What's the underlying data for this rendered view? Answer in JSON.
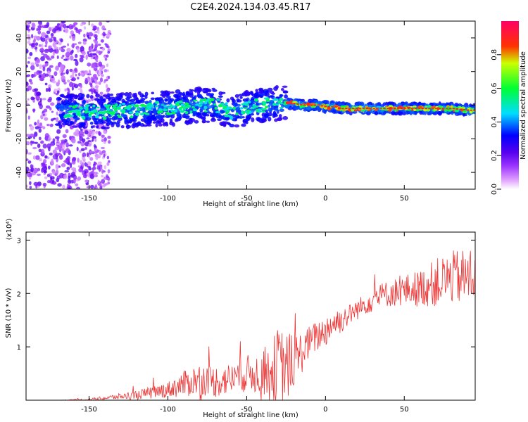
{
  "title": "C2E4.2024.134.03.45.R17",
  "chart_data": [
    {
      "type": "heatmap",
      "xlabel": "Height of straight line (km)",
      "ylabel": "Frequency (Hz)",
      "xlim": [
        -190,
        95
      ],
      "ylim": [
        -50,
        50
      ],
      "xticks": [
        -150,
        -100,
        -50,
        0,
        50
      ],
      "xtick_labels": [
        "-150",
        "-100",
        "-50",
        "0",
        "50"
      ],
      "yticks": [
        -40,
        -20,
        0,
        20,
        40
      ],
      "ytick_labels": [
        "-40",
        "-20",
        "0",
        "20",
        "40"
      ],
      "colorbar": {
        "label": "Normalized spectral amplitude",
        "range": [
          0,
          1
        ],
        "ticks": [
          0.0,
          0.2,
          0.4,
          0.6,
          0.8
        ],
        "tick_labels": [
          "0.0",
          "0.2",
          "0.4",
          "0.6",
          "0.8"
        ],
        "colormap": [
          "#ffffff",
          "#cc66ff",
          "#7700ee",
          "#0000ff",
          "#00ffff",
          "#00ff00",
          "#ffff00",
          "#ff0000",
          "#ff0066"
        ]
      },
      "ridge": {
        "description_free": true,
        "x": [
          -165,
          -150,
          -140,
          -130,
          -120,
          -110,
          -100,
          -90,
          -80,
          -70,
          -60,
          -50,
          -40,
          -30,
          -25,
          -20,
          -15,
          -10,
          -5,
          0,
          5,
          10,
          20,
          30,
          40,
          50,
          60,
          70,
          80,
          90,
          95
        ],
        "y": [
          -3,
          -4,
          -4,
          -3,
          -3,
          -2,
          -2,
          -1,
          0,
          0,
          -4,
          -2,
          0,
          1,
          1,
          1,
          0,
          0,
          0,
          -1,
          -1,
          -2,
          -2,
          -2,
          -2,
          -2,
          -2,
          -2,
          -2,
          -3,
          -3
        ]
      },
      "grid": false
    },
    {
      "type": "line",
      "xlabel": "Height of straight line (km)",
      "ylabel": "SNR (10 * v/v)",
      "scale_note": "(x10⁴)",
      "xlim": [
        -190,
        95
      ],
      "ylim": [
        0,
        3.15
      ],
      "xticks": [
        -150,
        -100,
        -50,
        0,
        50
      ],
      "xtick_labels": [
        "-150",
        "-100",
        "-50",
        "0",
        "50"
      ],
      "yticks": [
        1,
        2,
        3
      ],
      "ytick_labels": [
        "1",
        "2",
        "3"
      ],
      "color": "#ee3333",
      "series": [
        {
          "x": [
            -190,
            -170,
            -150,
            -140,
            -130,
            -120,
            -110,
            -100,
            -90,
            -80,
            -70,
            -60,
            -50,
            -40,
            -35,
            -30,
            -25,
            -20,
            -15,
            -10,
            -5,
            0,
            5,
            10,
            15,
            20,
            25,
            30,
            40,
            50,
            60,
            70,
            80,
            90,
            95
          ],
          "values": [
            0.0,
            0.0,
            0.01,
            0.04,
            0.07,
            0.1,
            0.14,
            0.2,
            0.3,
            0.4,
            0.35,
            0.4,
            0.5,
            0.5,
            0.55,
            0.6,
            0.6,
            0.75,
            0.9,
            1.1,
            1.2,
            1.3,
            1.45,
            1.5,
            1.6,
            1.7,
            1.8,
            1.9,
            2.0,
            2.05,
            2.1,
            2.2,
            2.3,
            2.3,
            2.4
          ],
          "noise": [
            0.0,
            0.0,
            0.02,
            0.04,
            0.06,
            0.08,
            0.12,
            0.15,
            0.25,
            0.3,
            0.3,
            0.3,
            0.35,
            0.4,
            0.5,
            0.8,
            0.7,
            0.5,
            0.4,
            0.3,
            0.3,
            0.3,
            0.3,
            0.25,
            0.2,
            0.2,
            0.2,
            0.25,
            0.25,
            0.3,
            0.35,
            0.45,
            0.5,
            0.55,
            0.6
          ]
        }
      ],
      "grid": false
    }
  ]
}
